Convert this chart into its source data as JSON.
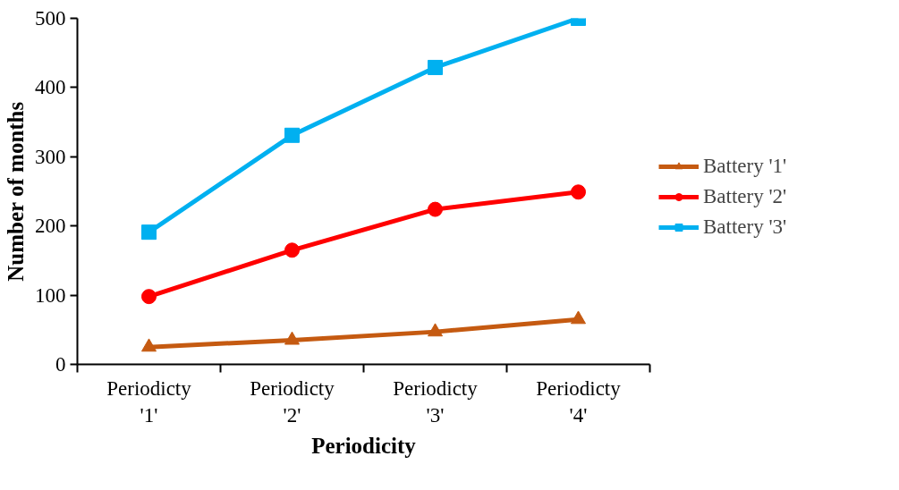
{
  "chart_data": {
    "type": "line",
    "xlabel": "Periodicity",
    "ylabel": "Number of months",
    "categories": [
      "Periodicty\n'1'",
      "Periodicty\n'2'",
      "Periodicty\n'3'",
      "Periodicty\n'4'"
    ],
    "series": [
      {
        "name": "Battery '1'",
        "color": "#c55a11",
        "marker": "triangle",
        "values": [
          25,
          35,
          47,
          65
        ]
      },
      {
        "name": "Battery '2'",
        "color": "#ff0000",
        "marker": "circle",
        "values": [
          98,
          165,
          224,
          249
        ]
      },
      {
        "name": "Battery '3'",
        "color": "#00b0f0",
        "marker": "square",
        "values": [
          191,
          331,
          429,
          500
        ]
      }
    ],
    "ylim": [
      0,
      500
    ],
    "yticks": [
      0,
      100,
      200,
      300,
      400,
      500
    ],
    "grid": false,
    "legend": "right"
  }
}
